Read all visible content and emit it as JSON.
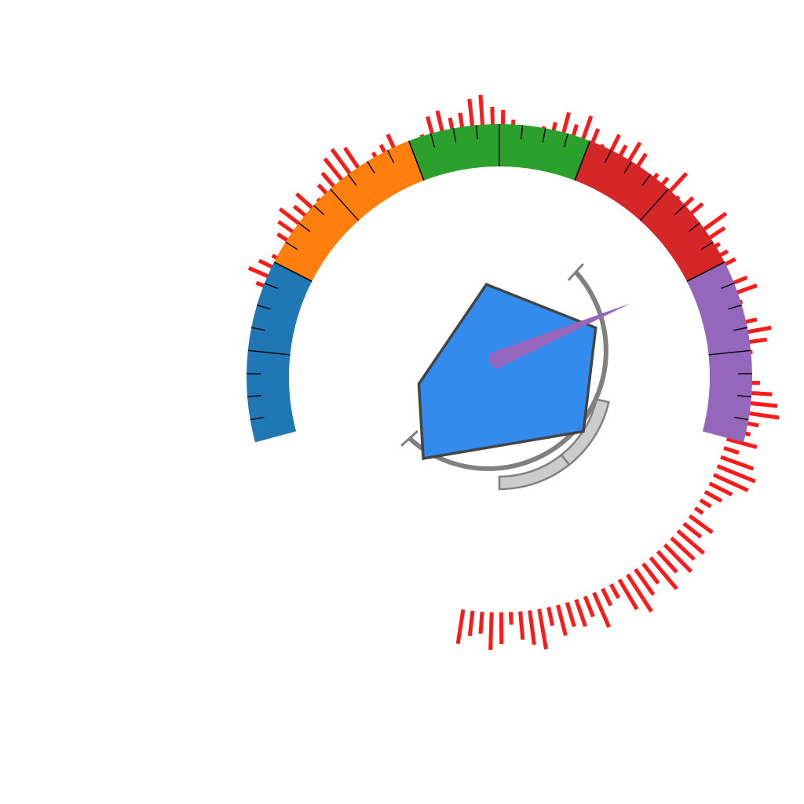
{
  "chart_data": {
    "type": "gauge",
    "title": "",
    "gauge_range": [
      0,
      100
    ],
    "bands": [
      {
        "from": 0,
        "to": 20,
        "color": "#1f77b4"
      },
      {
        "from": 20,
        "to": 40,
        "color": "#ff7f0e"
      },
      {
        "from": 40,
        "to": 60,
        "color": "#2ca02c"
      },
      {
        "from": 60,
        "to": 80,
        "color": "#d62728"
      },
      {
        "from": 80,
        "to": 100,
        "color": "#9467bd"
      }
    ],
    "major_tick_step": 10,
    "minor_tick_step": 2.5,
    "radial_bars": {
      "color": "#ff1a1a",
      "values": [
        8,
        12,
        10,
        7,
        4,
        9,
        11,
        13,
        10,
        12,
        6,
        9,
        11,
        14,
        15,
        13,
        3,
        7,
        8,
        10,
        5,
        4,
        6,
        11,
        12,
        9,
        10,
        14,
        15,
        11,
        10,
        7,
        4,
        3,
        6,
        8,
        12,
        9,
        13,
        10,
        6,
        11,
        9,
        12,
        10,
        4,
        7,
        8,
        13,
        6,
        9,
        10,
        5,
        14,
        11,
        7,
        8,
        9,
        4,
        10,
        12,
        6,
        3,
        9,
        13,
        11,
        6,
        5,
        4,
        8,
        12,
        14,
        15,
        9,
        7,
        10,
        5,
        11,
        13,
        12,
        8,
        6,
        4,
        3,
        9,
        7,
        11,
        10,
        12,
        9,
        13,
        8,
        10,
        14,
        11,
        5,
        6,
        12,
        7,
        9,
        8,
        10,
        6,
        13,
        11,
        9,
        4,
        10,
        12,
        7,
        8,
        11
      ]
    },
    "needle": {
      "value": 82,
      "color": "#9467bd"
    },
    "polygon": {
      "values": [
        0.82,
        0.95,
        0.88,
        0.98,
        0.71
      ],
      "fill": "#338ced",
      "stroke": "#444444"
    },
    "inner_arc": {
      "range": [
        0,
        100
      ],
      "color": "#808080"
    },
    "inner_progress": {
      "value": 50,
      "segments": 2,
      "fill": "#cccccc",
      "stroke": "#808080"
    }
  }
}
